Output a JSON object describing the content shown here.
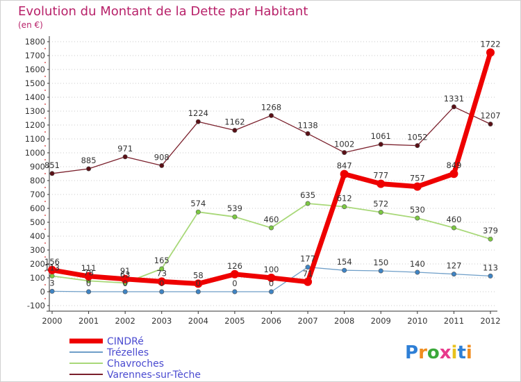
{
  "header": {
    "title": "Evolution du Montant de la Dette par Habitant",
    "subtitle": "(en €)"
  },
  "logo": {
    "text": "Proxiti"
  },
  "colors": {
    "title": "#b8226a",
    "axis": "#333333",
    "grid": "#c9c9c9",
    "tick_red": "#cc0000"
  },
  "chart_data": {
    "type": "line",
    "title": "Evolution du Montant de la Dette par Habitant",
    "subtitle": "(en €)",
    "xlabel": "",
    "ylabel": "",
    "categories": [
      "2000",
      "2001",
      "2002",
      "2003",
      "2004",
      "2005",
      "2006",
      "2007",
      "2008",
      "2009",
      "2010",
      "2011",
      "2012"
    ],
    "ylim": [
      -100,
      1800
    ],
    "yticks": [
      -100,
      0,
      100,
      200,
      300,
      400,
      500,
      600,
      700,
      800,
      900,
      1000,
      1100,
      1200,
      1300,
      1400,
      1500,
      1600,
      1700,
      1800
    ],
    "grid": "horizontal dotted",
    "legend_position": "bottom-left",
    "series": [
      {
        "name": "Varennes-sur-Tèche",
        "color": "#7a1f2b",
        "marker": "#5a1016",
        "width": 1.3,
        "values": [
          851,
          885,
          971,
          908,
          1224,
          1162,
          1268,
          1138,
          1002,
          1061,
          1052,
          1331,
          1207
        ]
      },
      {
        "name": "Chavroches",
        "color": "#a8d878",
        "marker": "#7cc842",
        "width": 1.8,
        "values": [
          113,
          78,
          63,
          165,
          574,
          539,
          460,
          635,
          612,
          572,
          530,
          460,
          379
        ]
      },
      {
        "name": "Trézelles",
        "color": "#6e9ec8",
        "marker": "#3f84c4",
        "width": 1.3,
        "values": [
          3,
          0,
          0,
          0,
          0,
          0,
          0,
          177,
          154,
          150,
          140,
          127,
          113
        ]
      },
      {
        "name": "CINDRé",
        "color": "#ee0000",
        "marker": "#ee0000",
        "width": 7,
        "values": [
          156,
          111,
          91,
          73,
          58,
          126,
          100,
          71,
          847,
          777,
          757,
          849,
          1722
        ]
      }
    ],
    "legend_order": [
      "CINDRé",
      "Trézelles",
      "Chavroches",
      "Varennes-sur-Tèche"
    ]
  }
}
